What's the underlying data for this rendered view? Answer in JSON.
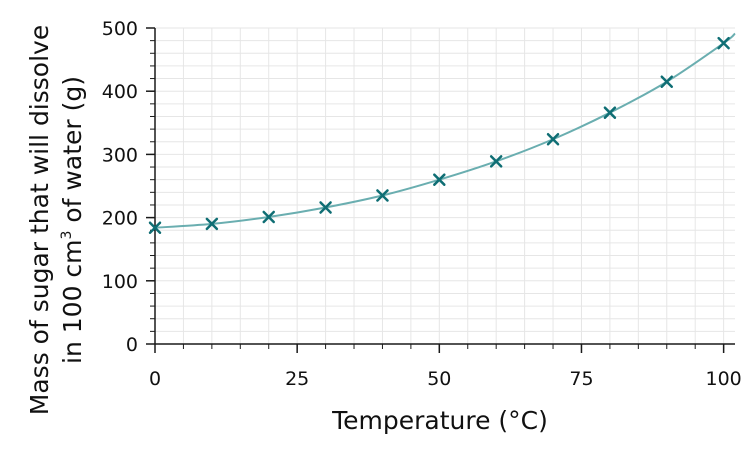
{
  "chart_data": {
    "type": "line",
    "xlabel": "Temperature (°C)",
    "ylabel_line1": "Mass of sugar  that will dissolve",
    "ylabel_line2_prefix": "in 100 cm",
    "ylabel_line2_sup": "3",
    "ylabel_line2_suffix": " of water (g)",
    "xlim": [
      0,
      102
    ],
    "ylim": [
      0,
      500
    ],
    "x_ticks": [
      0,
      25,
      50,
      75,
      100
    ],
    "y_ticks": [
      0,
      100,
      200,
      300,
      400,
      500
    ],
    "x_minor_step": 5,
    "y_minor_step": 20,
    "grid": true,
    "series": [
      {
        "marker": "x",
        "x": [
          0,
          10,
          20,
          30,
          40,
          50,
          60,
          70,
          80,
          90,
          100
        ],
        "values": [
          184,
          190,
          201,
          216,
          235,
          260,
          289,
          324,
          366,
          415,
          476
        ]
      }
    ],
    "colors": {
      "line": "#6aaeb0",
      "marker": "#0f6e74",
      "grid": "#e6e6e6",
      "axis": "#1a1a1a"
    }
  }
}
